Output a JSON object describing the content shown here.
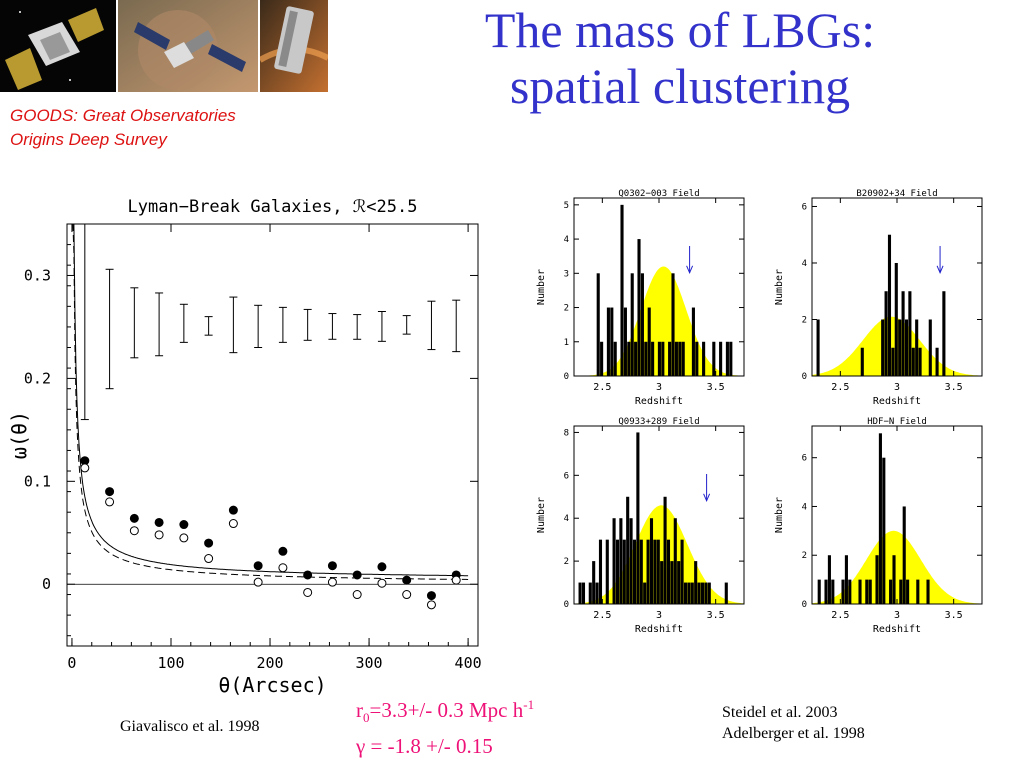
{
  "slide": {
    "title_line1": "The mass of LBGs:",
    "title_line2": "spatial clustering",
    "goods_line1": "GOODS: Great Observatories",
    "goods_line2": "Origins Deep Survey",
    "citation_left": "Giavalisco et al. 1998",
    "citation_right_1": "Steidel et al. 2003",
    "citation_right_2": "Adelberger et al. 1998",
    "formula_r0_symbol": "r",
    "formula_r0_sub": "0",
    "formula_r0_value": "=3.3+/- 0.3 Mpc h",
    "formula_r0_sup": "-1",
    "formula_gamma": "γ = -1.8 +/- 0.15",
    "images": [
      "satellite-telescope-photo",
      "satellite-telescope-photo",
      "space-telescope-photo"
    ],
    "colors": {
      "title": "#3333cc",
      "goods": "#dd1111",
      "formula": "#ee1177",
      "hist_fill": "#ffff00",
      "arrow": "#2222cc"
    }
  },
  "chart_data": [
    {
      "type": "scatter",
      "title": "Lyman−Break Galaxies, ℛ<25.5",
      "xlabel": "θ(Arcsec)",
      "ylabel": "ω(θ)",
      "xlim": [
        -5,
        410
      ],
      "ylim": [
        -0.06,
        0.35
      ],
      "xticks": [
        0,
        100,
        200,
        300,
        400
      ],
      "yticks": [
        0,
        0.1,
        0.2,
        0.3
      ],
      "xtick_labels": [
        "0",
        "100",
        "200",
        "300",
        "400"
      ],
      "ytick_labels": [
        "0",
        "0.1",
        "0.2",
        "0.3"
      ],
      "series": [
        {
          "marker": "filled-circle",
          "x": [
            13,
            38,
            63,
            88,
            113,
            138,
            163,
            188,
            213,
            238,
            263,
            288,
            313,
            338,
            363,
            388
          ],
          "y": [
            0.12,
            0.09,
            0.064,
            0.06,
            0.058,
            0.04,
            0.072,
            0.018,
            0.032,
            0.009,
            0.018,
            0.009,
            0.017,
            0.004,
            -0.011,
            0.009
          ]
        },
        {
          "marker": "open-circle",
          "x": [
            13,
            38,
            63,
            88,
            113,
            138,
            163,
            188,
            213,
            238,
            263,
            288,
            313,
            338,
            363,
            388
          ],
          "y": [
            0.113,
            0.08,
            0.052,
            0.048,
            0.045,
            0.025,
            0.059,
            0.002,
            0.016,
            -0.008,
            0.002,
            -0.01,
            0.001,
            -0.01,
            -0.02,
            0.004
          ]
        }
      ],
      "errorbars": {
        "x": [
          13,
          38,
          63,
          88,
          113,
          138,
          163,
          188,
          213,
          238,
          263,
          288,
          313,
          338,
          363,
          388
        ],
        "lo": [
          0.16,
          0.19,
          0.22,
          0.222,
          0.235,
          0.242,
          0.225,
          0.23,
          0.235,
          0.237,
          0.238,
          0.238,
          0.236,
          0.243,
          0.228,
          0.226
        ],
        "hi": [
          0.36,
          0.306,
          0.288,
          0.283,
          0.272,
          0.26,
          0.279,
          0.271,
          0.269,
          0.267,
          0.263,
          0.262,
          0.265,
          0.261,
          0.275,
          0.276
        ]
      },
      "curves": [
        {
          "style": "solid",
          "form": "A*x^-0.8+C",
          "A": 0.64,
          "C": 0.003
        },
        {
          "style": "dashed",
          "form": "A*x^-0.8",
          "A": 0.56
        }
      ]
    },
    {
      "type": "bar",
      "title": "Q0302−003 Field",
      "xlabel": "Redshift",
      "ylabel": "Number",
      "xlim": [
        2.25,
        3.75
      ],
      "ylim": [
        0,
        5.2
      ],
      "xticks": [
        2.5,
        3,
        3.5
      ],
      "xtick_labels": [
        "2.5",
        "3",
        "3.5"
      ],
      "yticks": [
        0,
        1,
        2,
        3,
        4,
        5
      ],
      "ytick_labels": [
        "0",
        "1",
        "2",
        "3",
        "4",
        "5"
      ],
      "arrow_z": 3.27,
      "bin_width": 0.03,
      "bin_start": 2.45,
      "counts": [
        3,
        1,
        0,
        2,
        2,
        1,
        0,
        5,
        2,
        1,
        3,
        1,
        4,
        3,
        1,
        2,
        1,
        0,
        1,
        1,
        0,
        1,
        3,
        1,
        1,
        1,
        0,
        0,
        2,
        1,
        0,
        1,
        0,
        0,
        1,
        0,
        1,
        0,
        1,
        1
      ],
      "fill_gauss": {
        "mu": 3.04,
        "sigma": 0.2,
        "peak": 3.2
      }
    },
    {
      "type": "bar",
      "title": "B20902+34 Field",
      "xlabel": "Redshift",
      "ylabel": "Number",
      "xlim": [
        2.25,
        3.75
      ],
      "ylim": [
        0,
        6.3
      ],
      "xticks": [
        2.5,
        3,
        3.5
      ],
      "xtick_labels": [
        "2.5",
        "3",
        "3.5"
      ],
      "yticks": [
        0,
        2,
        4,
        6
      ],
      "ytick_labels": [
        "0",
        "2",
        "4",
        "6"
      ],
      "arrow_z": 3.38,
      "bin_width": 0.03,
      "bin_start": 2.29,
      "counts": [
        2,
        0,
        0,
        0,
        0,
        0,
        0,
        0,
        0,
        0,
        0,
        0,
        0,
        1,
        0,
        0,
        0,
        0,
        0,
        2,
        3,
        5,
        1,
        4,
        2,
        3,
        2,
        3,
        1,
        2,
        1,
        0,
        0,
        2,
        0,
        1,
        0,
        3
      ],
      "fill_gauss": {
        "mu": 2.95,
        "sigma": 0.25,
        "peak": 2.1
      }
    },
    {
      "type": "bar",
      "title": "Q0933+289 Field",
      "xlabel": "Redshift",
      "ylabel": "Number",
      "xlim": [
        2.25,
        3.75
      ],
      "ylim": [
        0,
        8.3
      ],
      "xticks": [
        2.5,
        3,
        3.5
      ],
      "xtick_labels": [
        "2.5",
        "3",
        "3.5"
      ],
      "yticks": [
        0,
        2,
        4,
        6,
        8
      ],
      "ytick_labels": [
        "0",
        "2",
        "4",
        "6",
        "8"
      ],
      "arrow_z": 3.42,
      "bin_width": 0.03,
      "bin_start": 2.29,
      "counts": [
        1,
        1,
        0,
        1,
        2,
        1,
        3,
        0,
        3,
        0,
        4,
        3,
        4,
        3,
        5,
        4,
        3,
        8,
        3,
        1,
        3,
        4,
        3,
        3,
        2,
        5,
        3,
        2,
        4,
        2,
        3,
        1,
        1,
        1,
        2,
        1,
        1,
        1,
        1,
        0,
        0,
        0,
        0,
        1
      ],
      "fill_gauss": {
        "mu": 3.02,
        "sigma": 0.23,
        "peak": 4.6
      }
    },
    {
      "type": "bar",
      "title": "HDF−N Field",
      "xlabel": "Redshift",
      "ylabel": "Number",
      "xlim": [
        2.25,
        3.75
      ],
      "ylim": [
        0,
        7.3
      ],
      "xticks": [
        2.5,
        3,
        3.5
      ],
      "xtick_labels": [
        "2.5",
        "3",
        "3.5"
      ],
      "yticks": [
        0,
        2,
        4,
        6
      ],
      "ytick_labels": [
        "0",
        "2",
        "4",
        "6"
      ],
      "arrow_z": null,
      "bin_width": 0.03,
      "bin_start": 2.3,
      "counts": [
        1,
        0,
        1,
        2,
        1,
        0,
        0,
        1,
        2,
        1,
        0,
        0,
        1,
        0,
        1,
        1,
        0,
        2,
        7,
        6,
        0,
        1,
        2,
        0,
        1,
        4,
        1,
        0,
        0,
        1,
        0,
        0,
        1
      ],
      "fill_gauss": {
        "mu": 2.97,
        "sigma": 0.24,
        "peak": 3.0
      }
    }
  ]
}
